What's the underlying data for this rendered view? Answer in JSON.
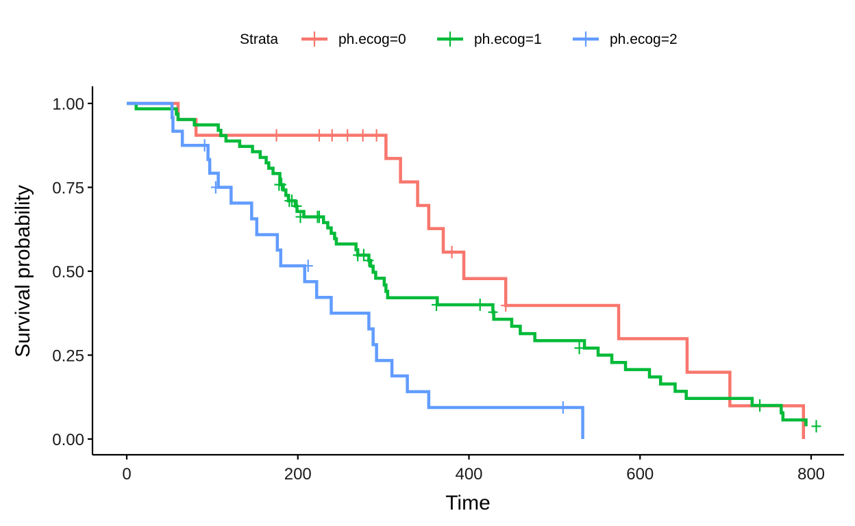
{
  "chart_data": {
    "type": "line",
    "subtype": "kaplan-meier survival curve",
    "title": "",
    "xlabel": "Time",
    "ylabel": "Survival probability",
    "xlim": [
      -30,
      840
    ],
    "ylim": [
      -0.05,
      1.05
    ],
    "x_ticks": [
      0,
      200,
      400,
      600,
      800
    ],
    "x_tick_labels": [
      "0",
      "200",
      "400",
      "600",
      "800"
    ],
    "y_ticks": [
      0,
      0.25,
      0.5,
      0.75,
      1
    ],
    "y_tick_labels": [
      "0.00",
      "0.25",
      "0.50",
      "0.75",
      "1.00"
    ],
    "grid": false,
    "legend": {
      "title": "Strata",
      "position": "top"
    },
    "series": [
      {
        "name": "ph.ecog=0",
        "color": "#F8766D",
        "steps": [
          [
            0,
            1.0
          ],
          [
            60,
            0.952
          ],
          [
            81,
            0.905
          ],
          [
            303,
            0.836
          ],
          [
            320,
            0.766
          ],
          [
            340,
            0.696
          ],
          [
            353,
            0.627
          ],
          [
            370,
            0.557
          ],
          [
            394,
            0.478
          ],
          [
            443,
            0.398
          ],
          [
            575,
            0.299
          ],
          [
            655,
            0.199
          ],
          [
            705,
            0.099
          ],
          [
            791,
            0.0
          ]
        ],
        "censored": [
          [
            175,
            0.905
          ],
          [
            225,
            0.905
          ],
          [
            240,
            0.905
          ],
          [
            258,
            0.905
          ],
          [
            276,
            0.905
          ],
          [
            292,
            0.905
          ],
          [
            380,
            0.557
          ],
          [
            443,
            0.398
          ]
        ]
      },
      {
        "name": "ph.ecog=1",
        "color": "#00BA38",
        "steps": [
          [
            0,
            1.0
          ],
          [
            11,
            0.984
          ],
          [
            58,
            0.968
          ],
          [
            60,
            0.952
          ],
          [
            79,
            0.936
          ],
          [
            107,
            0.92
          ],
          [
            110,
            0.904
          ],
          [
            116,
            0.888
          ],
          [
            132,
            0.872
          ],
          [
            147,
            0.856
          ],
          [
            156,
            0.839
          ],
          [
            163,
            0.823
          ],
          [
            166,
            0.807
          ],
          [
            171,
            0.791
          ],
          [
            179,
            0.774
          ],
          [
            180,
            0.758
          ],
          [
            183,
            0.742
          ],
          [
            186,
            0.726
          ],
          [
            189,
            0.71
          ],
          [
            197,
            0.694
          ],
          [
            199,
            0.678
          ],
          [
            207,
            0.662
          ],
          [
            230,
            0.645
          ],
          [
            235,
            0.629
          ],
          [
            239,
            0.613
          ],
          [
            243,
            0.597
          ],
          [
            245,
            0.581
          ],
          [
            268,
            0.564
          ],
          [
            270,
            0.548
          ],
          [
            283,
            0.532
          ],
          [
            285,
            0.515
          ],
          [
            288,
            0.497
          ],
          [
            291,
            0.479
          ],
          [
            301,
            0.459
          ],
          [
            303,
            0.44
          ],
          [
            305,
            0.421
          ],
          [
            363,
            0.4
          ],
          [
            428,
            0.378
          ],
          [
            429,
            0.357
          ],
          [
            450,
            0.336
          ],
          [
            460,
            0.314
          ],
          [
            477,
            0.293
          ],
          [
            535,
            0.271
          ],
          [
            551,
            0.25
          ],
          [
            567,
            0.228
          ],
          [
            583,
            0.207
          ],
          [
            611,
            0.185
          ],
          [
            624,
            0.164
          ],
          [
            641,
            0.142
          ],
          [
            654,
            0.121
          ],
          [
            731,
            0.1
          ],
          [
            765,
            0.078
          ],
          [
            767,
            0.057
          ],
          [
            794,
            0.038
          ]
        ],
        "censored": [
          [
            178,
            0.758
          ],
          [
            181,
            0.758
          ],
          [
            190,
            0.71
          ],
          [
            193,
            0.71
          ],
          [
            199,
            0.694
          ],
          [
            203,
            0.662
          ],
          [
            223,
            0.662
          ],
          [
            225,
            0.662
          ],
          [
            270,
            0.548
          ],
          [
            277,
            0.548
          ],
          [
            283,
            0.532
          ],
          [
            362,
            0.4
          ],
          [
            413,
            0.4
          ],
          [
            428,
            0.378
          ],
          [
            529,
            0.271
          ],
          [
            740,
            0.1
          ],
          [
            806,
            0.038
          ]
        ]
      },
      {
        "name": "ph.ecog=2",
        "color": "#619CFF",
        "steps": [
          [
            0,
            1.0
          ],
          [
            53,
            0.958
          ],
          [
            54,
            0.917
          ],
          [
            65,
            0.875
          ],
          [
            95,
            0.833
          ],
          [
            97,
            0.792
          ],
          [
            107,
            0.75
          ],
          [
            122,
            0.703
          ],
          [
            146,
            0.656
          ],
          [
            152,
            0.609
          ],
          [
            176,
            0.563
          ],
          [
            180,
            0.516
          ],
          [
            208,
            0.469
          ],
          [
            222,
            0.422
          ],
          [
            239,
            0.375
          ],
          [
            283,
            0.328
          ],
          [
            288,
            0.281
          ],
          [
            292,
            0.234
          ],
          [
            310,
            0.188
          ],
          [
            328,
            0.141
          ],
          [
            353,
            0.094
          ],
          [
            533,
            0.0
          ]
        ],
        "censored": [
          [
            91,
            0.875
          ],
          [
            104,
            0.75
          ],
          [
            212,
            0.516
          ],
          [
            510,
            0.094
          ]
        ]
      }
    ]
  }
}
